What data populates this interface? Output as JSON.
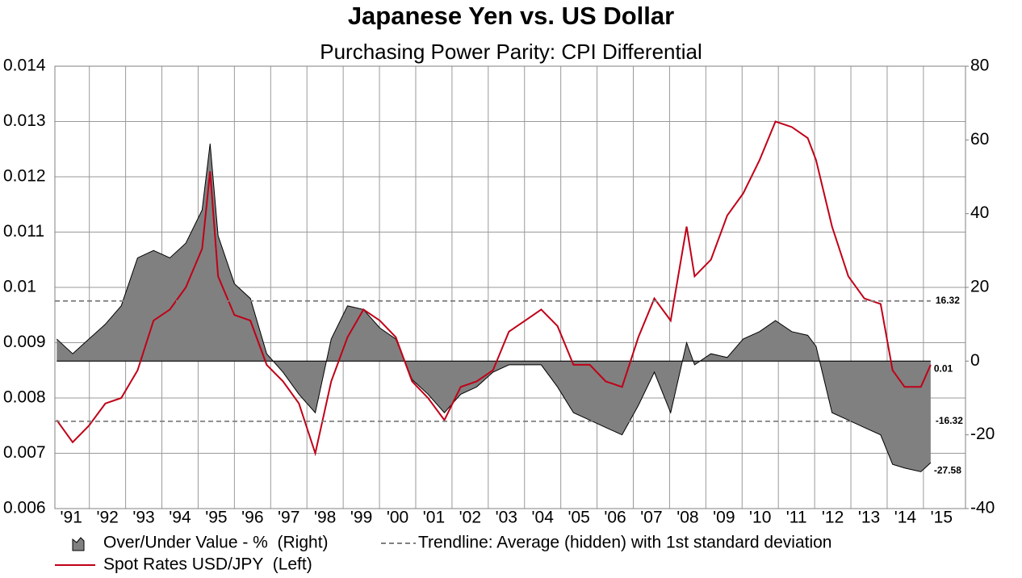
{
  "chart_data": {
    "type": "area-line",
    "title": "Japanese Yen vs. US Dollar",
    "subtitle": "Purchasing Power Parity: CPI Differential",
    "x": [
      1991.1,
      1991.54,
      1991.99,
      1992.44,
      1992.88,
      1993.33,
      1993.77,
      1994.22,
      1994.66,
      1995.11,
      1995.33,
      1995.55,
      1996.0,
      1996.44,
      1996.89,
      1997.34,
      1997.78,
      1998.23,
      1998.67,
      1999.12,
      1999.56,
      2000.01,
      2000.45,
      2000.9,
      2001.34,
      2001.79,
      2002.24,
      2002.68,
      2003.13,
      2003.57,
      2004.02,
      2004.46,
      2004.91,
      2005.35,
      2005.8,
      2006.24,
      2006.69,
      2007.14,
      2007.58,
      2008.03,
      2008.47,
      2008.69,
      2009.14,
      2009.59,
      2010.03,
      2010.48,
      2010.92,
      2011.37,
      2011.81,
      2012.04,
      2012.48,
      2012.93,
      2013.37,
      2013.82,
      2014.15,
      2014.48,
      2014.93,
      2015.2
    ],
    "series": [
      {
        "name": "Over/Under Value - %  (Right)",
        "color": "#808080",
        "axis": "y2",
        "values": [
          6,
          2,
          6,
          10,
          15,
          28,
          30,
          28,
          32,
          41,
          59,
          34,
          21,
          17,
          2,
          -3,
          -9,
          -14,
          6,
          15,
          14,
          9,
          6,
          -5,
          -9,
          -14,
          -9,
          -7,
          -3,
          -1,
          -1,
          -1,
          -7,
          -14,
          -16,
          -18,
          -20,
          -12,
          -3,
          -14,
          5,
          -1,
          2,
          1,
          6,
          8,
          11,
          8,
          7,
          4,
          -14,
          -16,
          -18,
          -20,
          -28,
          -29,
          -30,
          -27.58
        ]
      },
      {
        "name": "Spot Rates USD/JPY  (Left)",
        "color": "#c00018",
        "axis": "y",
        "values": [
          0.0076,
          0.0072,
          0.0075,
          0.0079,
          0.008,
          0.0085,
          0.0094,
          0.0096,
          0.01,
          0.0107,
          0.0121,
          0.0102,
          0.0095,
          0.0094,
          0.0086,
          0.0083,
          0.0079,
          0.007,
          0.0083,
          0.0091,
          0.0096,
          0.0094,
          0.0091,
          0.0083,
          0.008,
          0.0076,
          0.0082,
          0.0083,
          0.0085,
          0.0092,
          0.0094,
          0.0096,
          0.0093,
          0.0086,
          0.0086,
          0.0083,
          0.0082,
          0.0091,
          0.0098,
          0.0094,
          0.0111,
          0.0102,
          0.0105,
          0.0113,
          0.0117,
          0.0123,
          0.013,
          0.0129,
          0.0127,
          0.0123,
          0.0111,
          0.0102,
          0.0098,
          0.0097,
          0.0085,
          0.0082,
          0.0082,
          0.0086
        ]
      }
    ],
    "trendline": {
      "name": "Trendline: Average (hidden) with 1st standard deviation",
      "color": "#808080",
      "axis": "y2",
      "values": [
        16.32,
        -16.32
      ]
    },
    "end_labels": [
      {
        "text": "0.01",
        "value": 0.01,
        "axis": "y2",
        "color": "#c00018"
      },
      {
        "text": "-27.58",
        "value": -27.58,
        "axis": "y2",
        "color": "#808080"
      }
    ],
    "xlim": [
      1991.05,
      2016.16
    ],
    "xticks": [
      {
        "value": 1991.5,
        "label": "'91"
      },
      {
        "value": 1992.5,
        "label": "'92"
      },
      {
        "value": 1993.5,
        "label": "'93"
      },
      {
        "value": 1994.5,
        "label": "'94"
      },
      {
        "value": 1995.5,
        "label": "'95"
      },
      {
        "value": 1996.5,
        "label": "'96"
      },
      {
        "value": 1997.5,
        "label": "'97"
      },
      {
        "value": 1998.5,
        "label": "'98"
      },
      {
        "value": 1999.5,
        "label": "'99"
      },
      {
        "value": 2000.5,
        "label": "'00"
      },
      {
        "value": 2001.5,
        "label": "'01"
      },
      {
        "value": 2002.5,
        "label": "'02"
      },
      {
        "value": 2003.5,
        "label": "'03"
      },
      {
        "value": 2004.5,
        "label": "'04"
      },
      {
        "value": 2005.5,
        "label": "'05"
      },
      {
        "value": 2006.5,
        "label": "'06"
      },
      {
        "value": 2007.5,
        "label": "'07"
      },
      {
        "value": 2008.5,
        "label": "'08"
      },
      {
        "value": 2009.5,
        "label": "'09"
      },
      {
        "value": 2010.5,
        "label": "'10"
      },
      {
        "value": 2011.5,
        "label": "'11"
      },
      {
        "value": 2012.5,
        "label": "'12"
      },
      {
        "value": 2013.5,
        "label": "'13"
      },
      {
        "value": 2014.5,
        "label": "'14"
      },
      {
        "value": 2015.5,
        "label": "'15"
      }
    ],
    "ylim": [
      0.006,
      0.014
    ],
    "yticks": [
      0.006,
      0.007,
      0.008,
      0.009,
      0.01,
      0.011,
      0.012,
      0.013,
      0.014
    ],
    "y2lim": [
      -40,
      80
    ],
    "y2ticks": [
      -40,
      -20,
      0,
      20,
      40,
      60,
      80
    ],
    "grid": true
  }
}
